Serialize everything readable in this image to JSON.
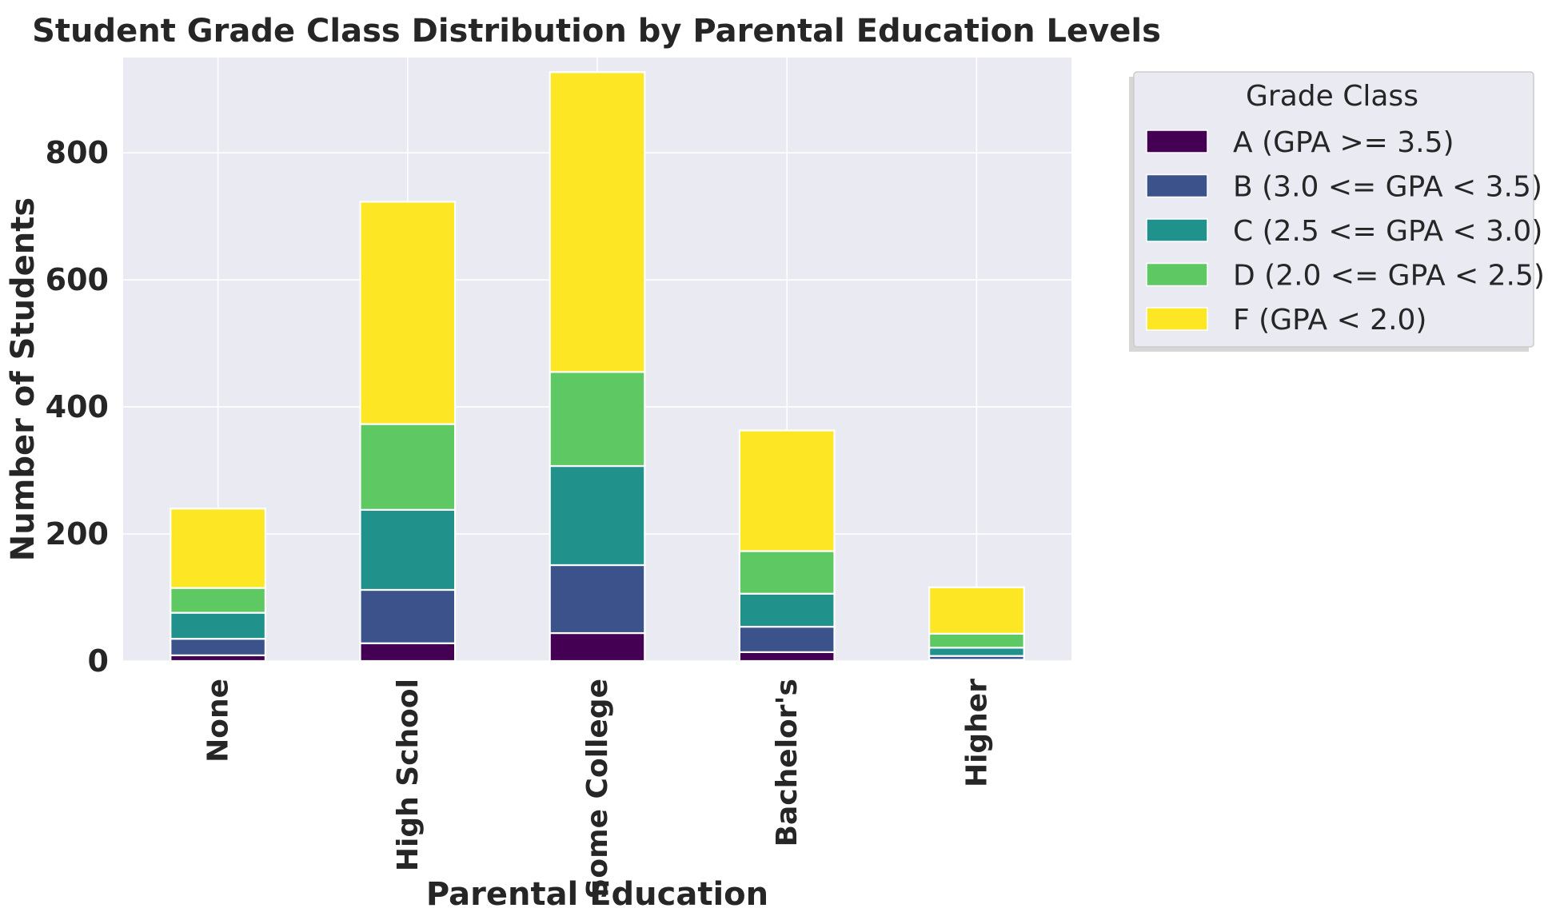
{
  "chart_data": {
    "type": "bar",
    "stacked": true,
    "title": "Student Grade Class Distribution by Parental Education Levels",
    "xlabel": "Parental Education",
    "ylabel": "Number of Students",
    "categories": [
      "None",
      "High School",
      "Some College",
      "Bachelor's",
      "Higher"
    ],
    "ylim": [
      0,
      950
    ],
    "yticks": [
      0,
      200,
      400,
      600,
      800
    ],
    "grid": true,
    "legend": {
      "title": "Grade Class",
      "placement": "outside-upper-right"
    },
    "series": [
      {
        "name": "A (GPA >= 3.5)",
        "color": "#440154",
        "values": [
          9,
          28,
          44,
          14,
          2
        ]
      },
      {
        "name": "B (3.0 <= GPA < 3.5)",
        "color": "#3b528b",
        "values": [
          26,
          84,
          107,
          40,
          6
        ]
      },
      {
        "name": "C (2.5 <= GPA < 3.0)",
        "color": "#21918c",
        "values": [
          41,
          126,
          156,
          52,
          13
        ]
      },
      {
        "name": "D (2.0 <= GPA < 2.5)",
        "color": "#5ec962",
        "values": [
          39,
          135,
          148,
          67,
          22
        ]
      },
      {
        "name": "F (GPA < 2.0)",
        "color": "#fde725",
        "values": [
          125,
          350,
          472,
          190,
          73
        ]
      }
    ]
  }
}
